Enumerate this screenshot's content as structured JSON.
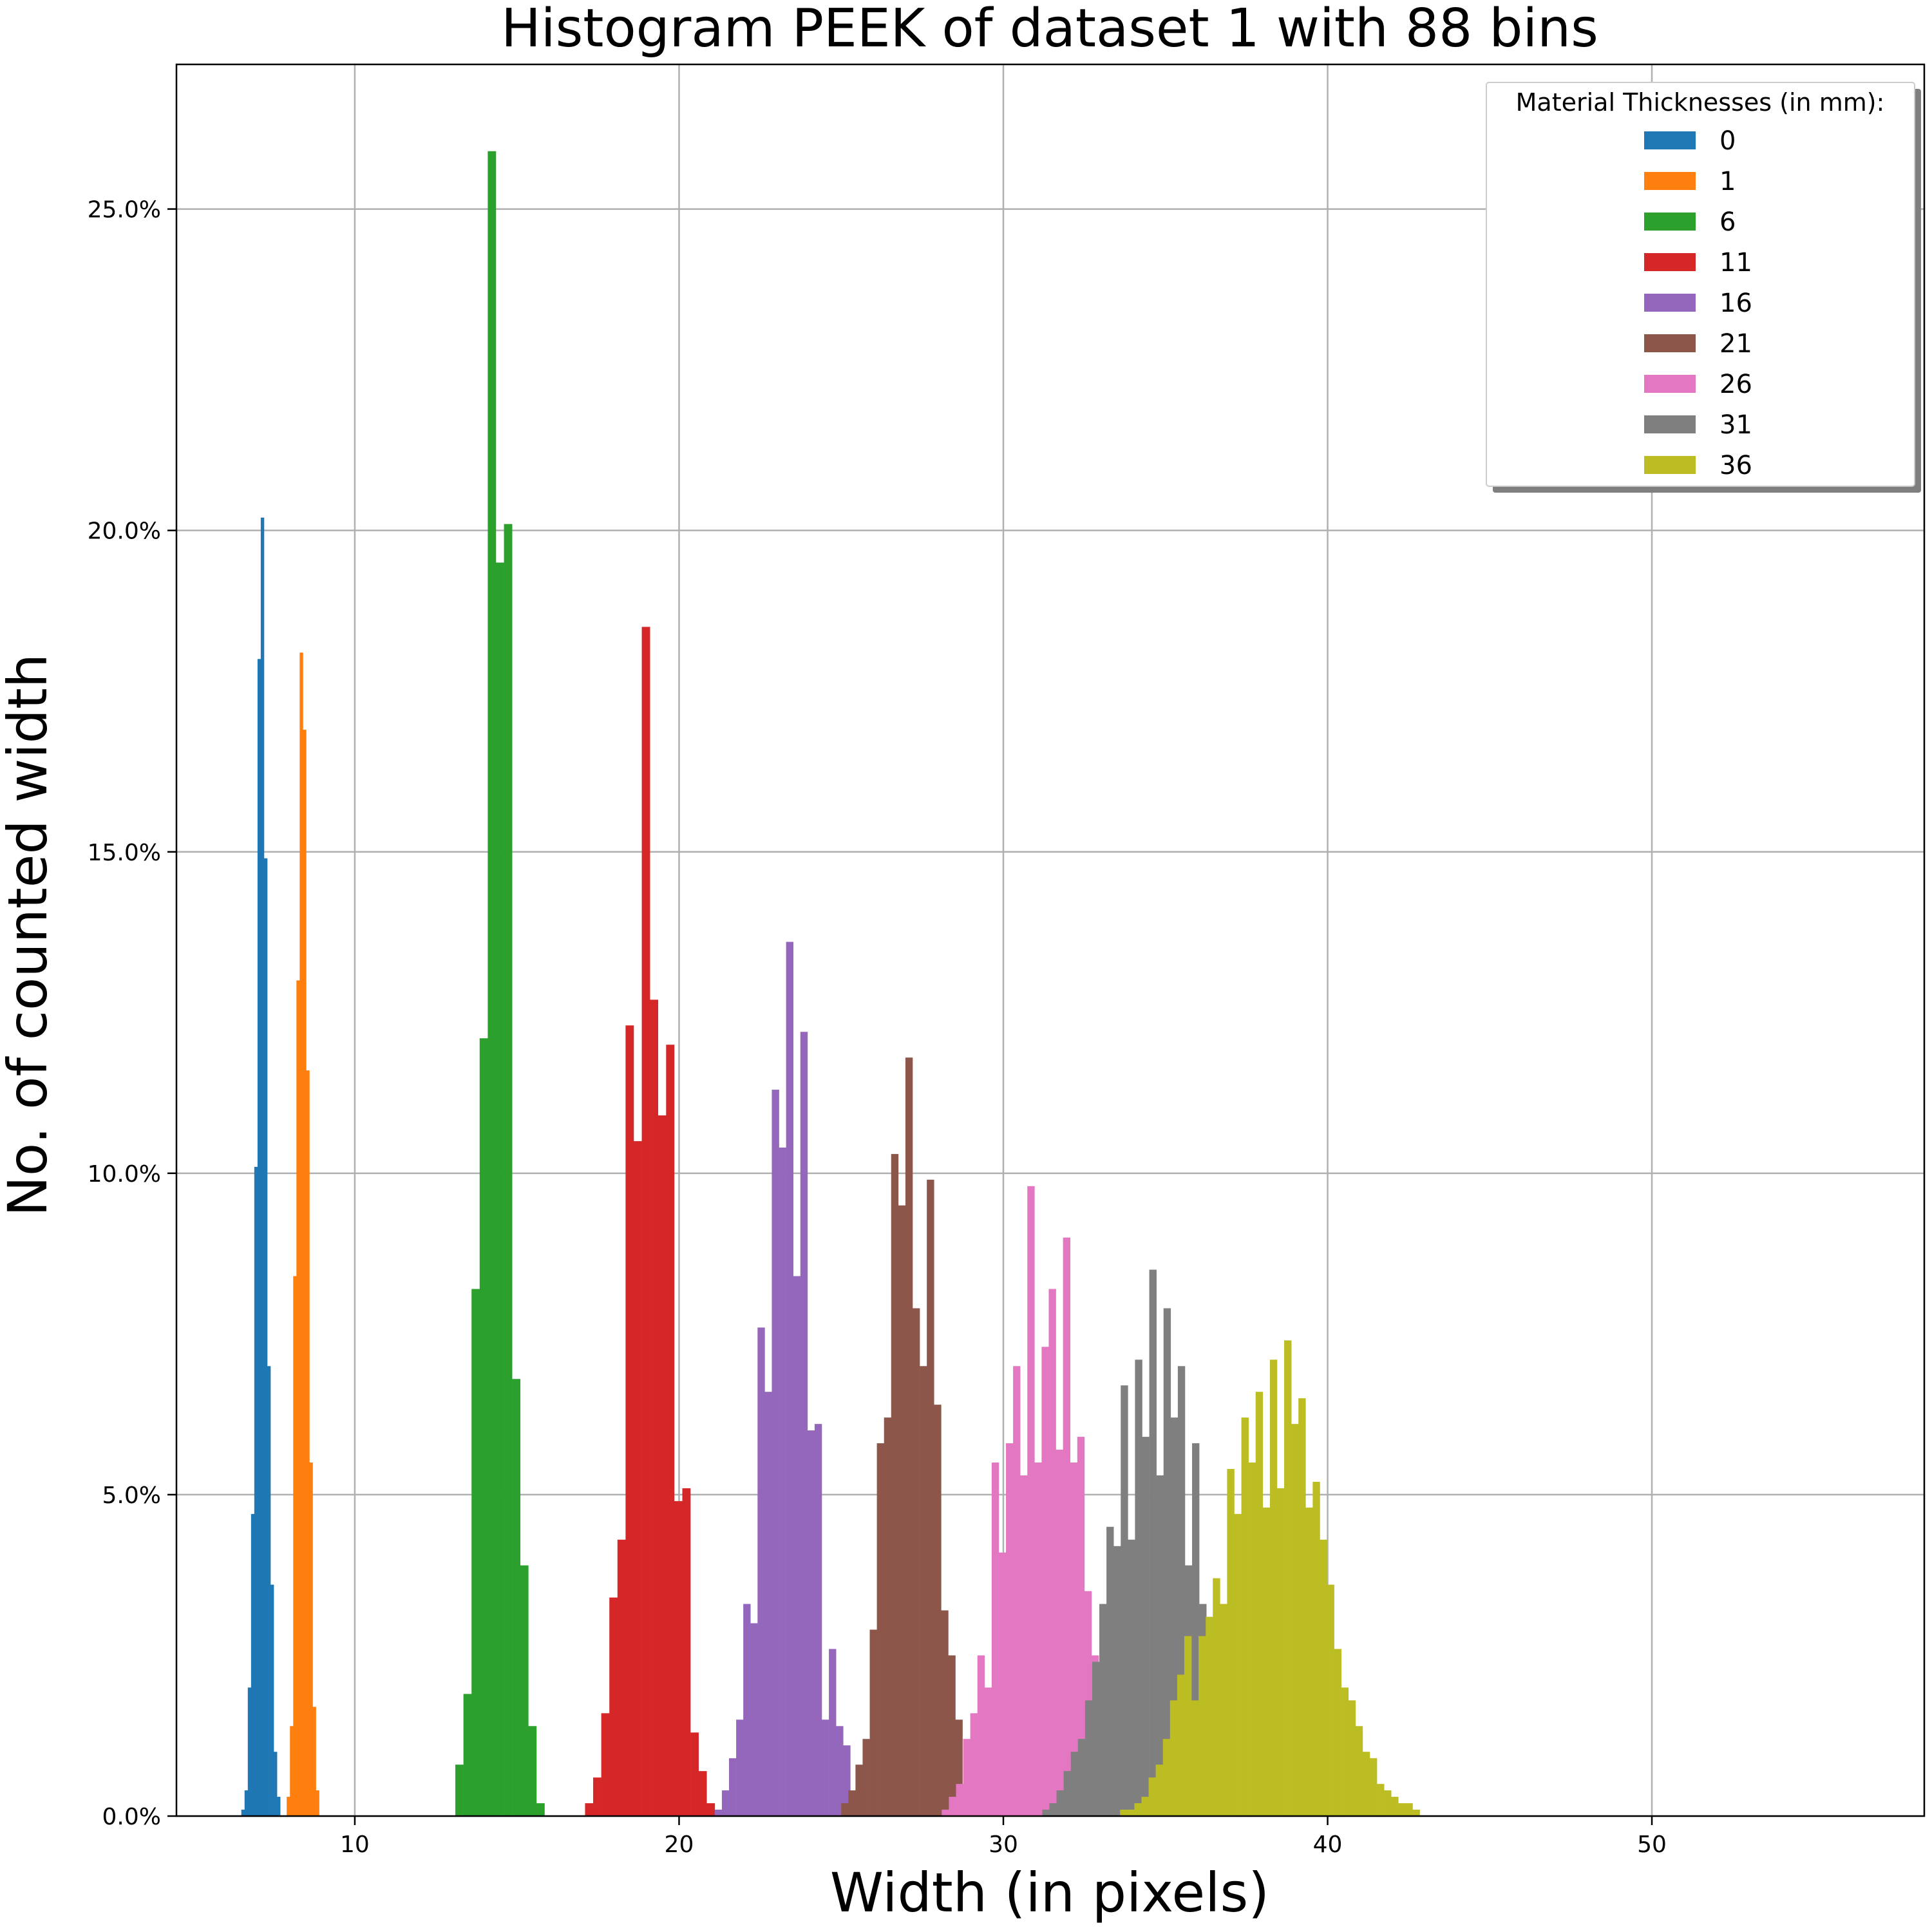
{
  "chart_data": {
    "type": "bar",
    "subtype": "histogram",
    "title": "Histogram PEEK of dataset 1 with 88 bins",
    "xlabel": "Width (in pixels)",
    "ylabel": "No. of counted width",
    "xlim": [
      4.5,
      58.4
    ],
    "ylim": [
      0,
      0.2725
    ],
    "xticks": [
      10,
      20,
      30,
      40,
      50
    ],
    "xtick_labels": [
      "10",
      "20",
      "30",
      "40",
      "50"
    ],
    "yticks": [
      0,
      0.05,
      0.1,
      0.15,
      0.2,
      0.25
    ],
    "ytick_labels": [
      "0.0%",
      "5.0%",
      "10.0%",
      "15.0%",
      "20.0%",
      "25.0%"
    ],
    "grid": true,
    "legend": {
      "title": "Material Thicknesses (in mm):",
      "placement": "upper right"
    },
    "series": [
      {
        "name": "0",
        "color": "#1f77b4",
        "bin_width": 0.1,
        "bin_start": 6.5,
        "values": [
          0.001,
          0.004,
          0.02,
          0.047,
          0.101,
          0.18,
          0.202,
          0.149,
          0.07,
          0.036,
          0.01,
          0.003
        ]
      },
      {
        "name": "1",
        "color": "#ff7f0e",
        "bin_width": 0.1,
        "bin_start": 7.9,
        "values": [
          0.003,
          0.014,
          0.084,
          0.13,
          0.181,
          0.169,
          0.116,
          0.055,
          0.017,
          0.004
        ]
      },
      {
        "name": "6",
        "color": "#2ca02c",
        "bin_width": 0.25,
        "bin_start": 13.1,
        "values": [
          0.008,
          0.019,
          0.082,
          0.121,
          0.259,
          0.195,
          0.201,
          0.068,
          0.039,
          0.014,
          0.002
        ]
      },
      {
        "name": "11",
        "color": "#d62728",
        "bin_width": 0.25,
        "bin_start": 17.1,
        "values": [
          0.002,
          0.006,
          0.016,
          0.034,
          0.043,
          0.123,
          0.105,
          0.185,
          0.127,
          0.109,
          0.12,
          0.049,
          0.051,
          0.013,
          0.007,
          0.002
        ]
      },
      {
        "name": "16",
        "color": "#9467bd",
        "bin_width": 0.22,
        "bin_start": 21.1,
        "values": [
          0.001,
          0.004,
          0.009,
          0.015,
          0.033,
          0.03,
          0.076,
          0.066,
          0.113,
          0.104,
          0.136,
          0.084,
          0.122,
          0.06,
          0.061,
          0.015,
          0.026,
          0.014,
          0.011
        ]
      },
      {
        "name": "21",
        "color": "#8c564b",
        "bin_width": 0.22,
        "bin_start": 25.0,
        "values": [
          0.002,
          0.004,
          0.008,
          0.012,
          0.029,
          0.058,
          0.062,
          0.103,
          0.095,
          0.118,
          0.079,
          0.07,
          0.099,
          0.064,
          0.032,
          0.025,
          0.015
        ]
      },
      {
        "name": "26",
        "color": "#e377c2",
        "bin_width": 0.22,
        "bin_start": 28.1,
        "values": [
          0.001,
          0.003,
          0.005,
          0.012,
          0.016,
          0.025,
          0.02,
          0.055,
          0.041,
          0.058,
          0.07,
          0.053,
          0.098,
          0.055,
          0.073,
          0.082,
          0.057,
          0.09,
          0.055,
          0.059,
          0.035,
          0.025
        ]
      },
      {
        "name": "31",
        "color": "#7f7f7f",
        "bin_width": 0.22,
        "bin_start": 31.2,
        "values": [
          0.001,
          0.002,
          0.004,
          0.007,
          0.01,
          0.012,
          0.018,
          0.024,
          0.033,
          0.045,
          0.042,
          0.067,
          0.043,
          0.071,
          0.059,
          0.085,
          0.053,
          0.079,
          0.062,
          0.07,
          0.039,
          0.058,
          0.033
        ]
      },
      {
        "name": "36",
        "color": "#bcbd22",
        "bin_width": 0.22,
        "bin_start": 33.6,
        "values": [
          0.001,
          0.001,
          0.002,
          0.003,
          0.006,
          0.008,
          0.012,
          0.018,
          0.022,
          0.028,
          0.018,
          0.028,
          0.031,
          0.037,
          0.033,
          0.054,
          0.047,
          0.062,
          0.055,
          0.066,
          0.048,
          0.071,
          0.051,
          0.074,
          0.061,
          0.065,
          0.048,
          0.052,
          0.043,
          0.036,
          0.026,
          0.02,
          0.018,
          0.014,
          0.01,
          0.009,
          0.005,
          0.004,
          0.003,
          0.002,
          0.002,
          0.001
        ]
      }
    ]
  }
}
